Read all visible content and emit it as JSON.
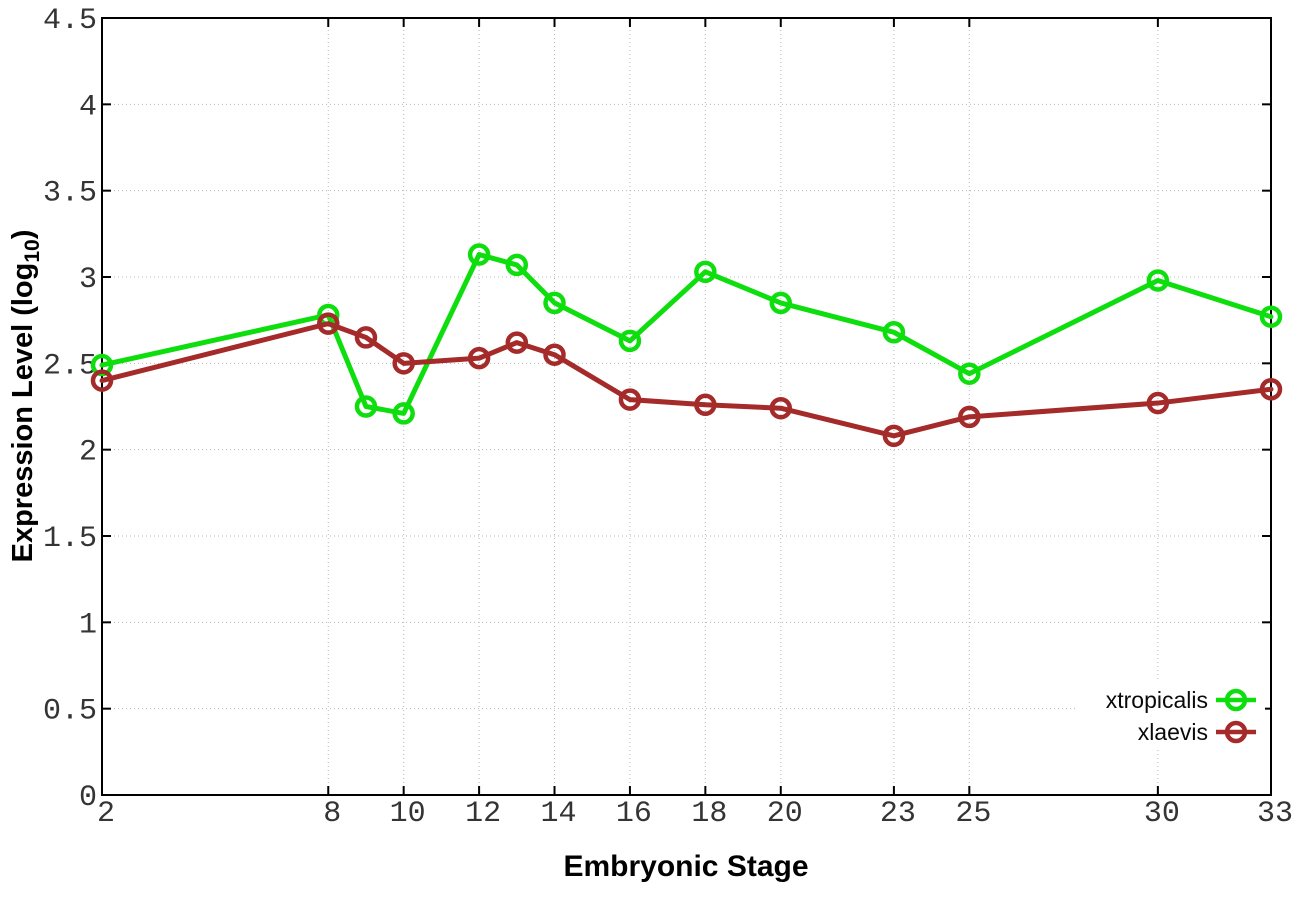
{
  "chart_data": {
    "type": "line",
    "title": "",
    "xlabel": "Embryonic Stage",
    "ylabel": "Expression Level (log10)",
    "ylabel_parts": {
      "main": "Expression Level (log",
      "sub": "10",
      "end": ")"
    },
    "x_axis_name": "Embryonic Stage",
    "x": [
      2,
      8,
      9,
      10,
      12,
      13,
      14,
      16,
      18,
      20,
      23,
      25,
      30,
      33
    ],
    "xlim": [
      2,
      33
    ],
    "ylim": [
      0,
      4.5
    ],
    "x_tick_values": [
      2,
      8,
      10,
      12,
      14,
      16,
      18,
      20,
      23,
      25,
      30,
      33
    ],
    "x_tick_labels": [
      "2",
      "8",
      "10",
      "12",
      "14",
      "16",
      "18",
      "20",
      "23",
      "25",
      "30",
      "33"
    ],
    "y_tick_values": [
      0,
      0.5,
      1,
      1.5,
      2,
      2.5,
      3,
      3.5,
      4,
      4.5
    ],
    "y_tick_labels": [
      "0",
      "0.5",
      "1",
      "1.5",
      "2",
      "2.5",
      "3",
      "3.5",
      "4",
      "4.5"
    ],
    "grid": true,
    "grid_style": "dotted",
    "legend_position": "inside-bottom-right",
    "marker": "open-circle",
    "series": [
      {
        "name": "xtropicalis",
        "color": "#0EDE0E",
        "values": [
          2.49,
          2.78,
          2.25,
          2.21,
          3.13,
          3.07,
          2.85,
          2.63,
          3.03,
          2.85,
          2.68,
          2.44,
          2.98,
          2.77
        ]
      },
      {
        "name": "xlaevis",
        "color": "#A52A2A",
        "values": [
          2.4,
          2.73,
          2.65,
          2.5,
          2.53,
          2.62,
          2.55,
          2.29,
          2.26,
          2.24,
          2.08,
          2.19,
          2.27,
          2.35
        ]
      }
    ]
  },
  "colors": {
    "background": "#ffffff",
    "plot_border": "#000000",
    "grid": "#b8b8b8",
    "tick_label": "#343434",
    "axis_title": "#000000"
  }
}
